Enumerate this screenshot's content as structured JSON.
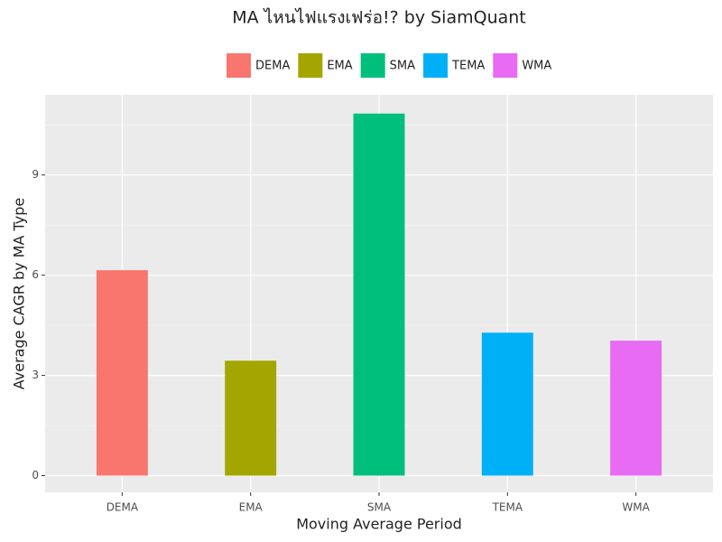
{
  "chart_data": {
    "type": "bar",
    "title": "MA ไหนไฟแรงเฟร่อ!? by SiamQuant",
    "x_label": "Moving Average Period",
    "y_label": "Average CAGR by MA Type",
    "categories": [
      "DEMA",
      "EMA",
      "SMA",
      "TEMA",
      "WMA"
    ],
    "values": [
      6.15,
      3.44,
      10.84,
      4.28,
      4.04
    ],
    "colors": [
      "#f8766d",
      "#a3a500",
      "#00bf7d",
      "#00b0f6",
      "#e76bf3"
    ],
    "ylim": [
      -0.5,
      11.4
    ],
    "yticks": [
      0,
      3,
      6,
      9
    ],
    "y_minor_ticks": [
      1.5,
      4.5,
      7.5,
      10.5
    ],
    "grid": true,
    "legend": "top"
  }
}
